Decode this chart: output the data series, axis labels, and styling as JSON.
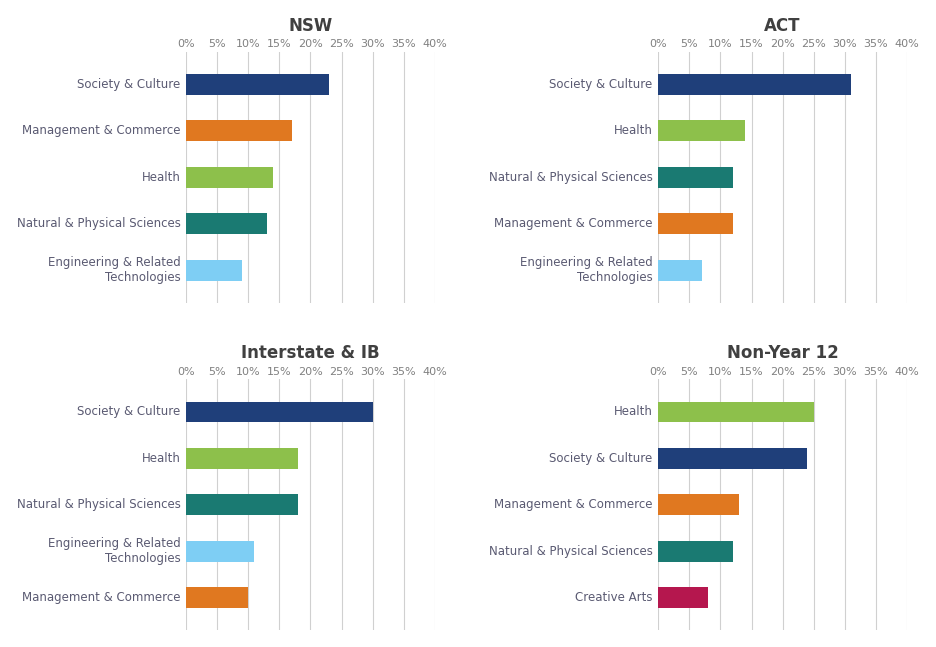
{
  "panels": [
    {
      "title": "NSW",
      "categories": [
        "Society & Culture",
        "Management & Commerce",
        "Health",
        "Natural & Physical Sciences",
        "Engineering & Related\nTechnologies"
      ],
      "values": [
        23,
        17,
        14,
        13,
        9
      ],
      "colors": [
        "#1f3f7a",
        "#e07820",
        "#8dc04b",
        "#1a7a72",
        "#7ecef4"
      ]
    },
    {
      "title": "ACT",
      "categories": [
        "Society & Culture",
        "Health",
        "Natural & Physical Sciences",
        "Management & Commerce",
        "Engineering & Related\nTechnologies"
      ],
      "values": [
        31,
        14,
        12,
        12,
        7
      ],
      "colors": [
        "#1f3f7a",
        "#8dc04b",
        "#1a7a72",
        "#e07820",
        "#7ecef4"
      ]
    },
    {
      "title": "Interstate & IB",
      "categories": [
        "Society & Culture",
        "Health",
        "Natural & Physical Sciences",
        "Engineering & Related\nTechnologies",
        "Management & Commerce"
      ],
      "values": [
        30,
        18,
        18,
        11,
        10
      ],
      "colors": [
        "#1f3f7a",
        "#8dc04b",
        "#1a7a72",
        "#7ecef4",
        "#e07820"
      ]
    },
    {
      "title": "Non-Year 12",
      "categories": [
        "Health",
        "Society & Culture",
        "Management & Commerce",
        "Natural & Physical Sciences",
        "Creative Arts"
      ],
      "values": [
        25,
        24,
        13,
        12,
        8
      ],
      "colors": [
        "#8dc04b",
        "#1f3f7a",
        "#e07820",
        "#1a7a72",
        "#b5174e"
      ]
    }
  ],
  "xlim": [
    0,
    40
  ],
  "xticks": [
    0,
    5,
    10,
    15,
    20,
    25,
    30,
    35,
    40
  ],
  "xticklabels": [
    "0%",
    "5%",
    "10%",
    "15%",
    "20%",
    "25%",
    "30%",
    "35%",
    "40%"
  ],
  "title_color": "#404040",
  "label_color": "#5a5a72",
  "grid_color": "#d0d0d0",
  "background_color": "#ffffff",
  "title_fontsize": 12,
  "tick_fontsize": 8,
  "label_fontsize": 8.5
}
